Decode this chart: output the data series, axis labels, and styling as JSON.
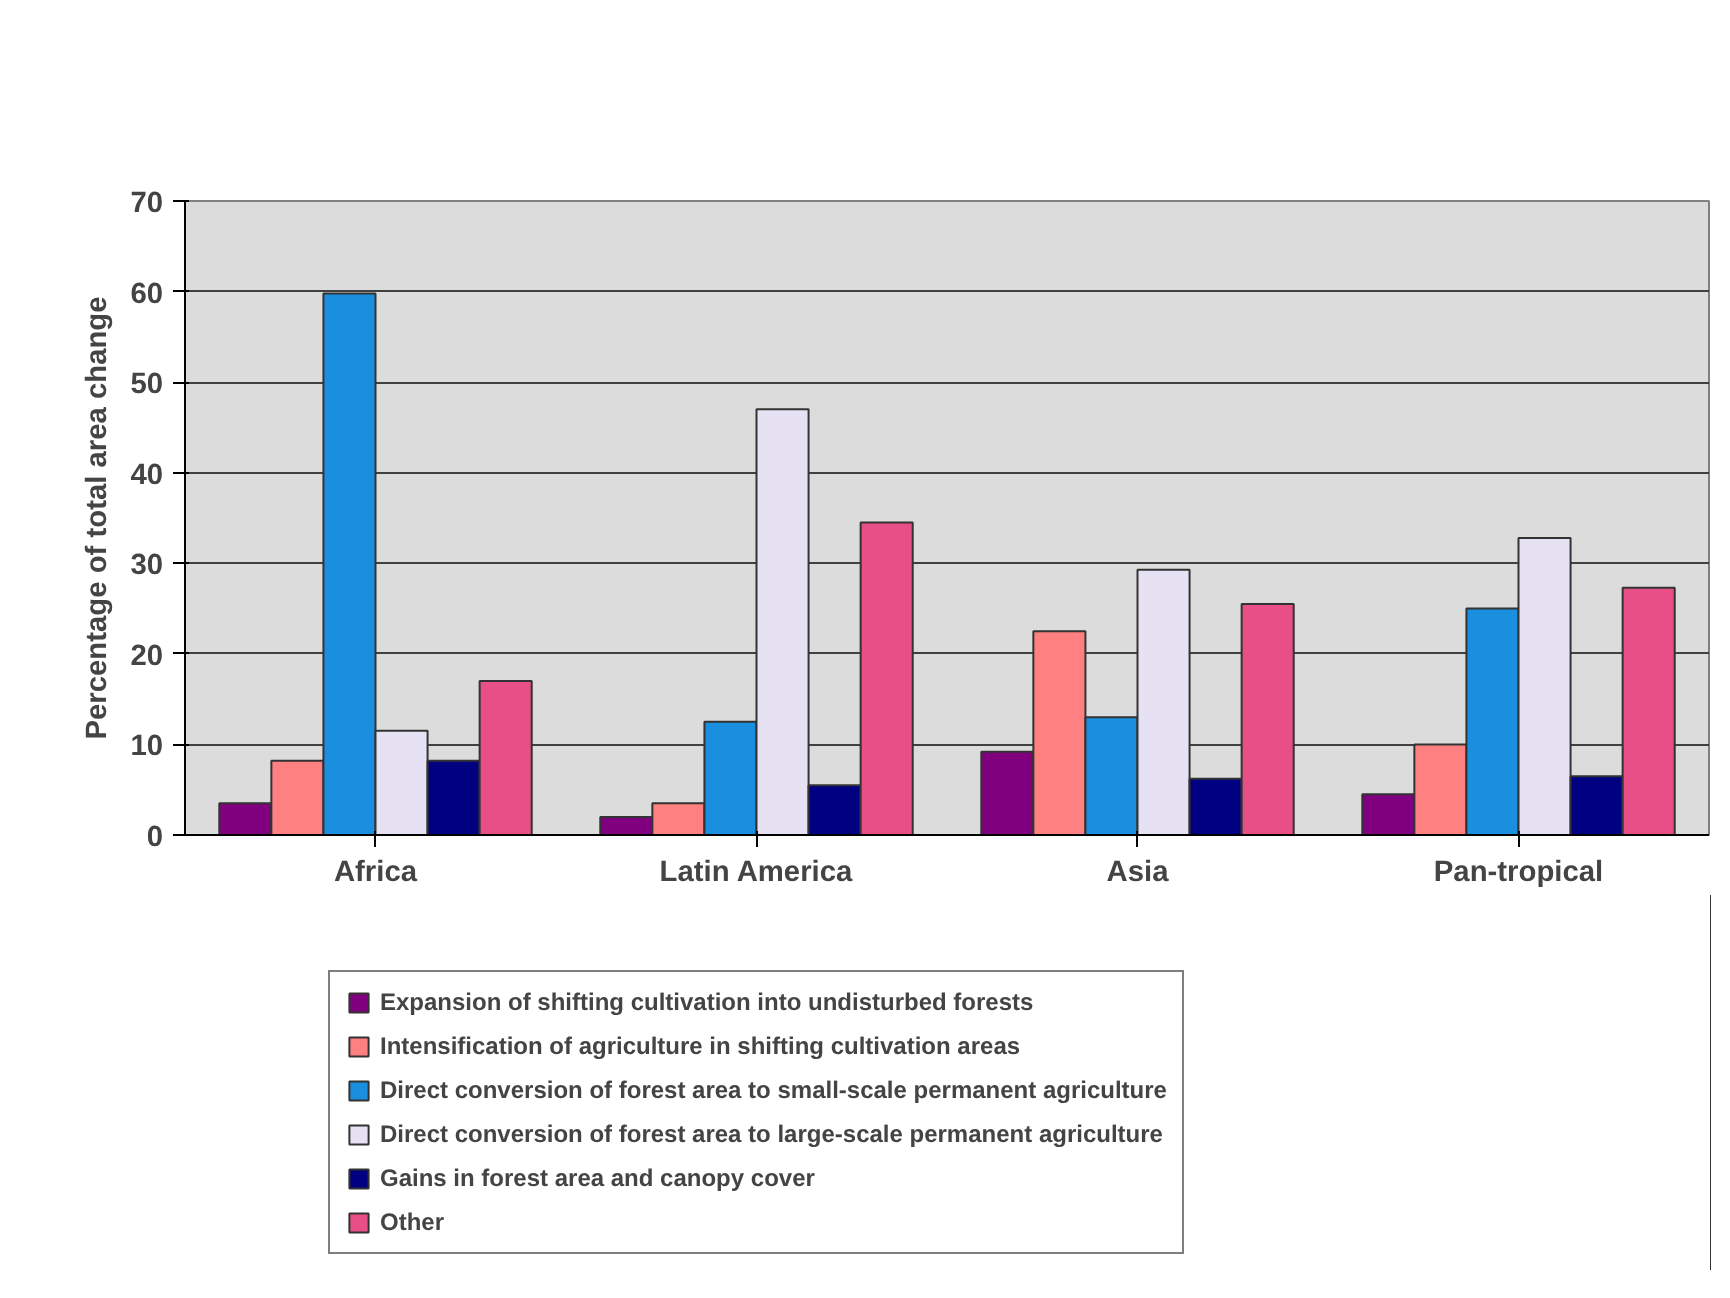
{
  "chart_data": {
    "type": "bar",
    "ylabel": "Percentage of total area change",
    "categories": [
      "Africa",
      "Latin America",
      "Asia",
      "Pan-tropical"
    ],
    "series": [
      {
        "name": "Expansion of shifting cultivation into undisturbed forests",
        "color": "#800080",
        "values": [
          3.5,
          2,
          9.2,
          4.5
        ]
      },
      {
        "name": "Intensification of agriculture in shifting cultivation areas",
        "color": "#ff8080",
        "values": [
          8.2,
          3.5,
          22.5,
          10
        ]
      },
      {
        "name": "Direct conversion of forest area to small-scale permanent agriculture",
        "color": "#1a8fe0",
        "values": [
          59.8,
          12.5,
          13,
          25
        ]
      },
      {
        "name": "Direct conversion of forest area to large-scale permanent agriculture",
        "color": "#e6e2f4",
        "values": [
          11.5,
          47,
          29.3,
          32.8
        ]
      },
      {
        "name": "Gains in forest area and canopy cover",
        "color": "#000080",
        "values": [
          8.2,
          5.5,
          6.2,
          6.5
        ]
      },
      {
        "name": "Other",
        "color": "#e84f86",
        "values": [
          17,
          34.5,
          25.5,
          27.3
        ]
      }
    ],
    "ylim": [
      0,
      70
    ],
    "yticks": [
      0,
      10,
      20,
      30,
      40,
      50,
      60,
      70
    ],
    "grid": "y",
    "legend": "bottom"
  }
}
